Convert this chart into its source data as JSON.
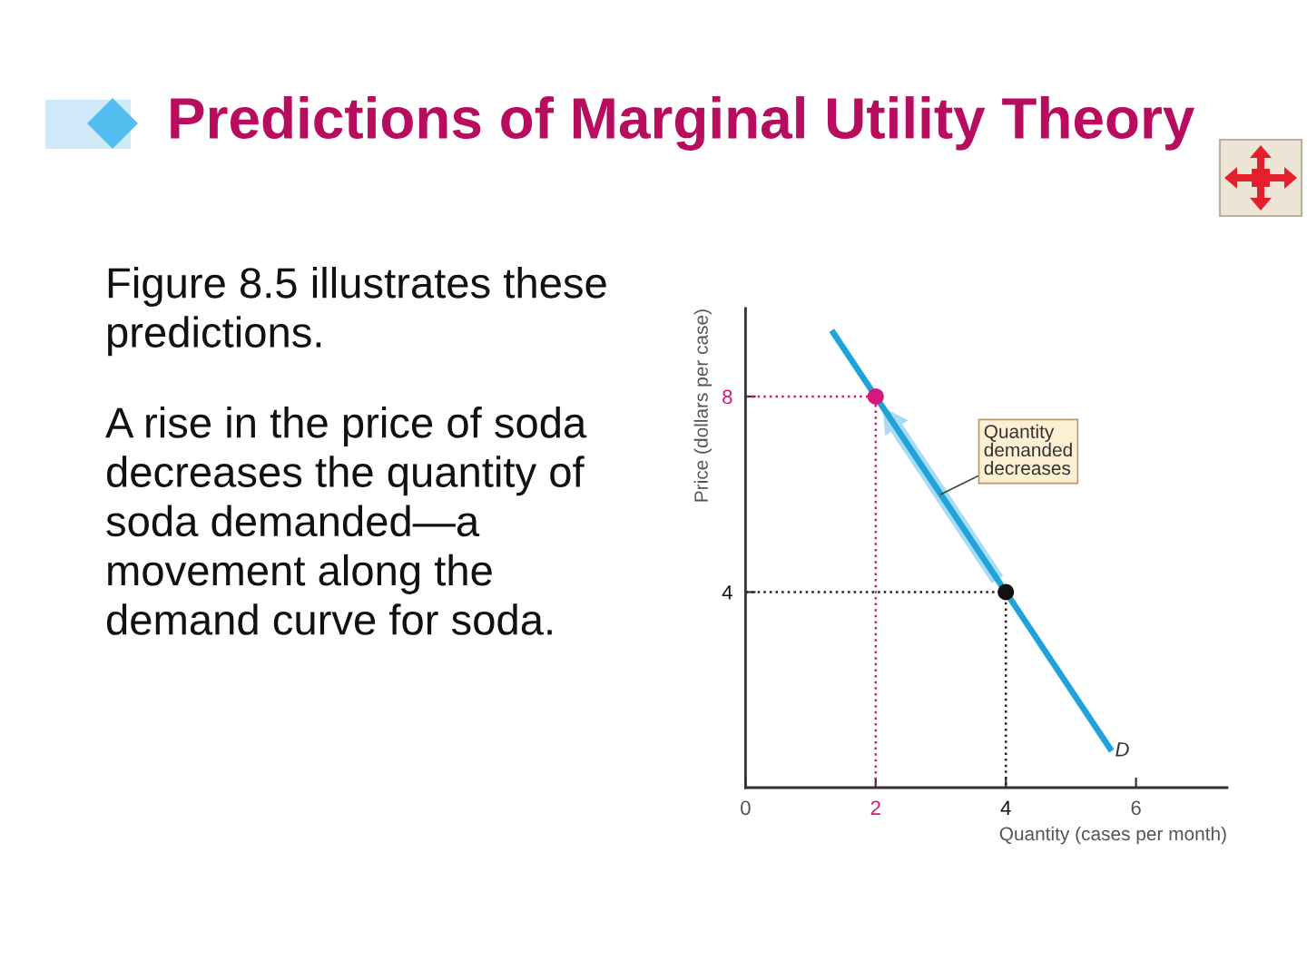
{
  "chart_data": {
    "type": "line",
    "title": "Predictions of Marginal Utility Theory",
    "xlabel": "Quantity (cases per month)",
    "ylabel": "Price (dollars per case)",
    "annotations": [
      "Figure 8.5 illustrates these\npredictions.",
      "A rise in the price of soda\ndecreases the quantity of\nsoda demanded—a\nmovement along the\ndemand curve for soda.",
      {
        "text": "Quantity\ndemanded\ndecreases",
        "x": 3,
        "y": 6
      }
    ],
    "xlim": [
      0,
      7.4
    ],
    "ylim": [
      0,
      9.8
    ],
    "xticks": [
      0,
      2,
      4,
      6
    ],
    "yticks": [
      4,
      8
    ],
    "series": [
      {
        "name": "D",
        "color": "#1fa3d8",
        "x": [
          1.35,
          2,
          4,
          5.6
        ],
        "values": [
          9.3,
          8,
          4,
          0.8
        ]
      },
      {
        "color": "#d4197a",
        "line_style": "dotted",
        "x": [
          0,
          2,
          2
        ],
        "values": [
          8,
          8,
          0
        ]
      },
      {
        "color": "#222222",
        "line_style": "dotted",
        "x": [
          0,
          4,
          4
        ],
        "values": [
          4,
          4,
          0
        ]
      },
      {
        "type": "scatter",
        "color": "#d4197a",
        "marker": "circle",
        "x": [
          2
        ],
        "values": [
          8
        ]
      },
      {
        "type": "scatter",
        "color": "#111111",
        "marker": "circle",
        "x": [
          4
        ],
        "values": [
          4
        ]
      }
    ]
  }
}
